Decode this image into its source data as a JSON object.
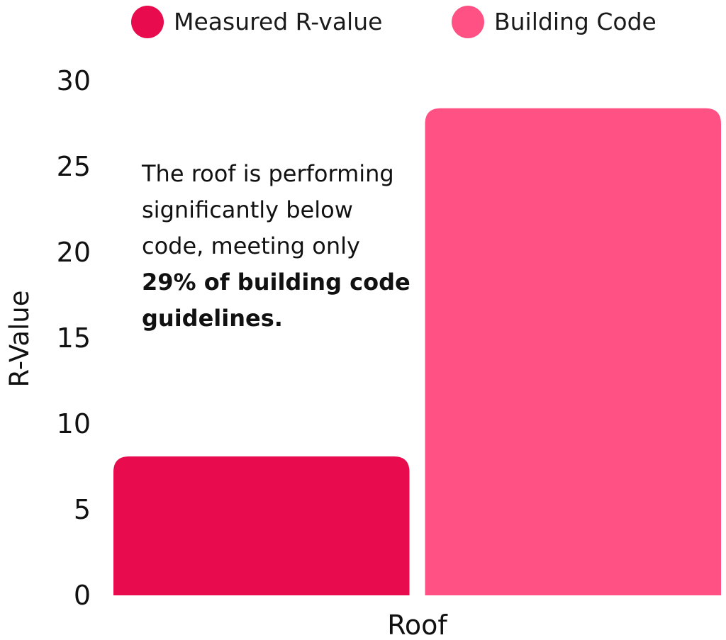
{
  "chart_data": {
    "type": "bar",
    "categories": [
      "Roof"
    ],
    "series": [
      {
        "name": "Measured R-value",
        "values": [
          8.1
        ],
        "color": "#e80c4e"
      },
      {
        "name": "Building Code",
        "values": [
          28.4
        ],
        "color": "#ff5184"
      }
    ],
    "ylabel": "R-Value",
    "ylim": [
      0,
      30
    ],
    "yticks": [
      "0",
      "5",
      "10",
      "15",
      "20",
      "25",
      "30"
    ],
    "legend_position": "top",
    "grid": false,
    "annotation": {
      "text_plain": "The roof is performing significantly below code, meeting only",
      "text_bold": "29% of building code guidelines."
    }
  }
}
